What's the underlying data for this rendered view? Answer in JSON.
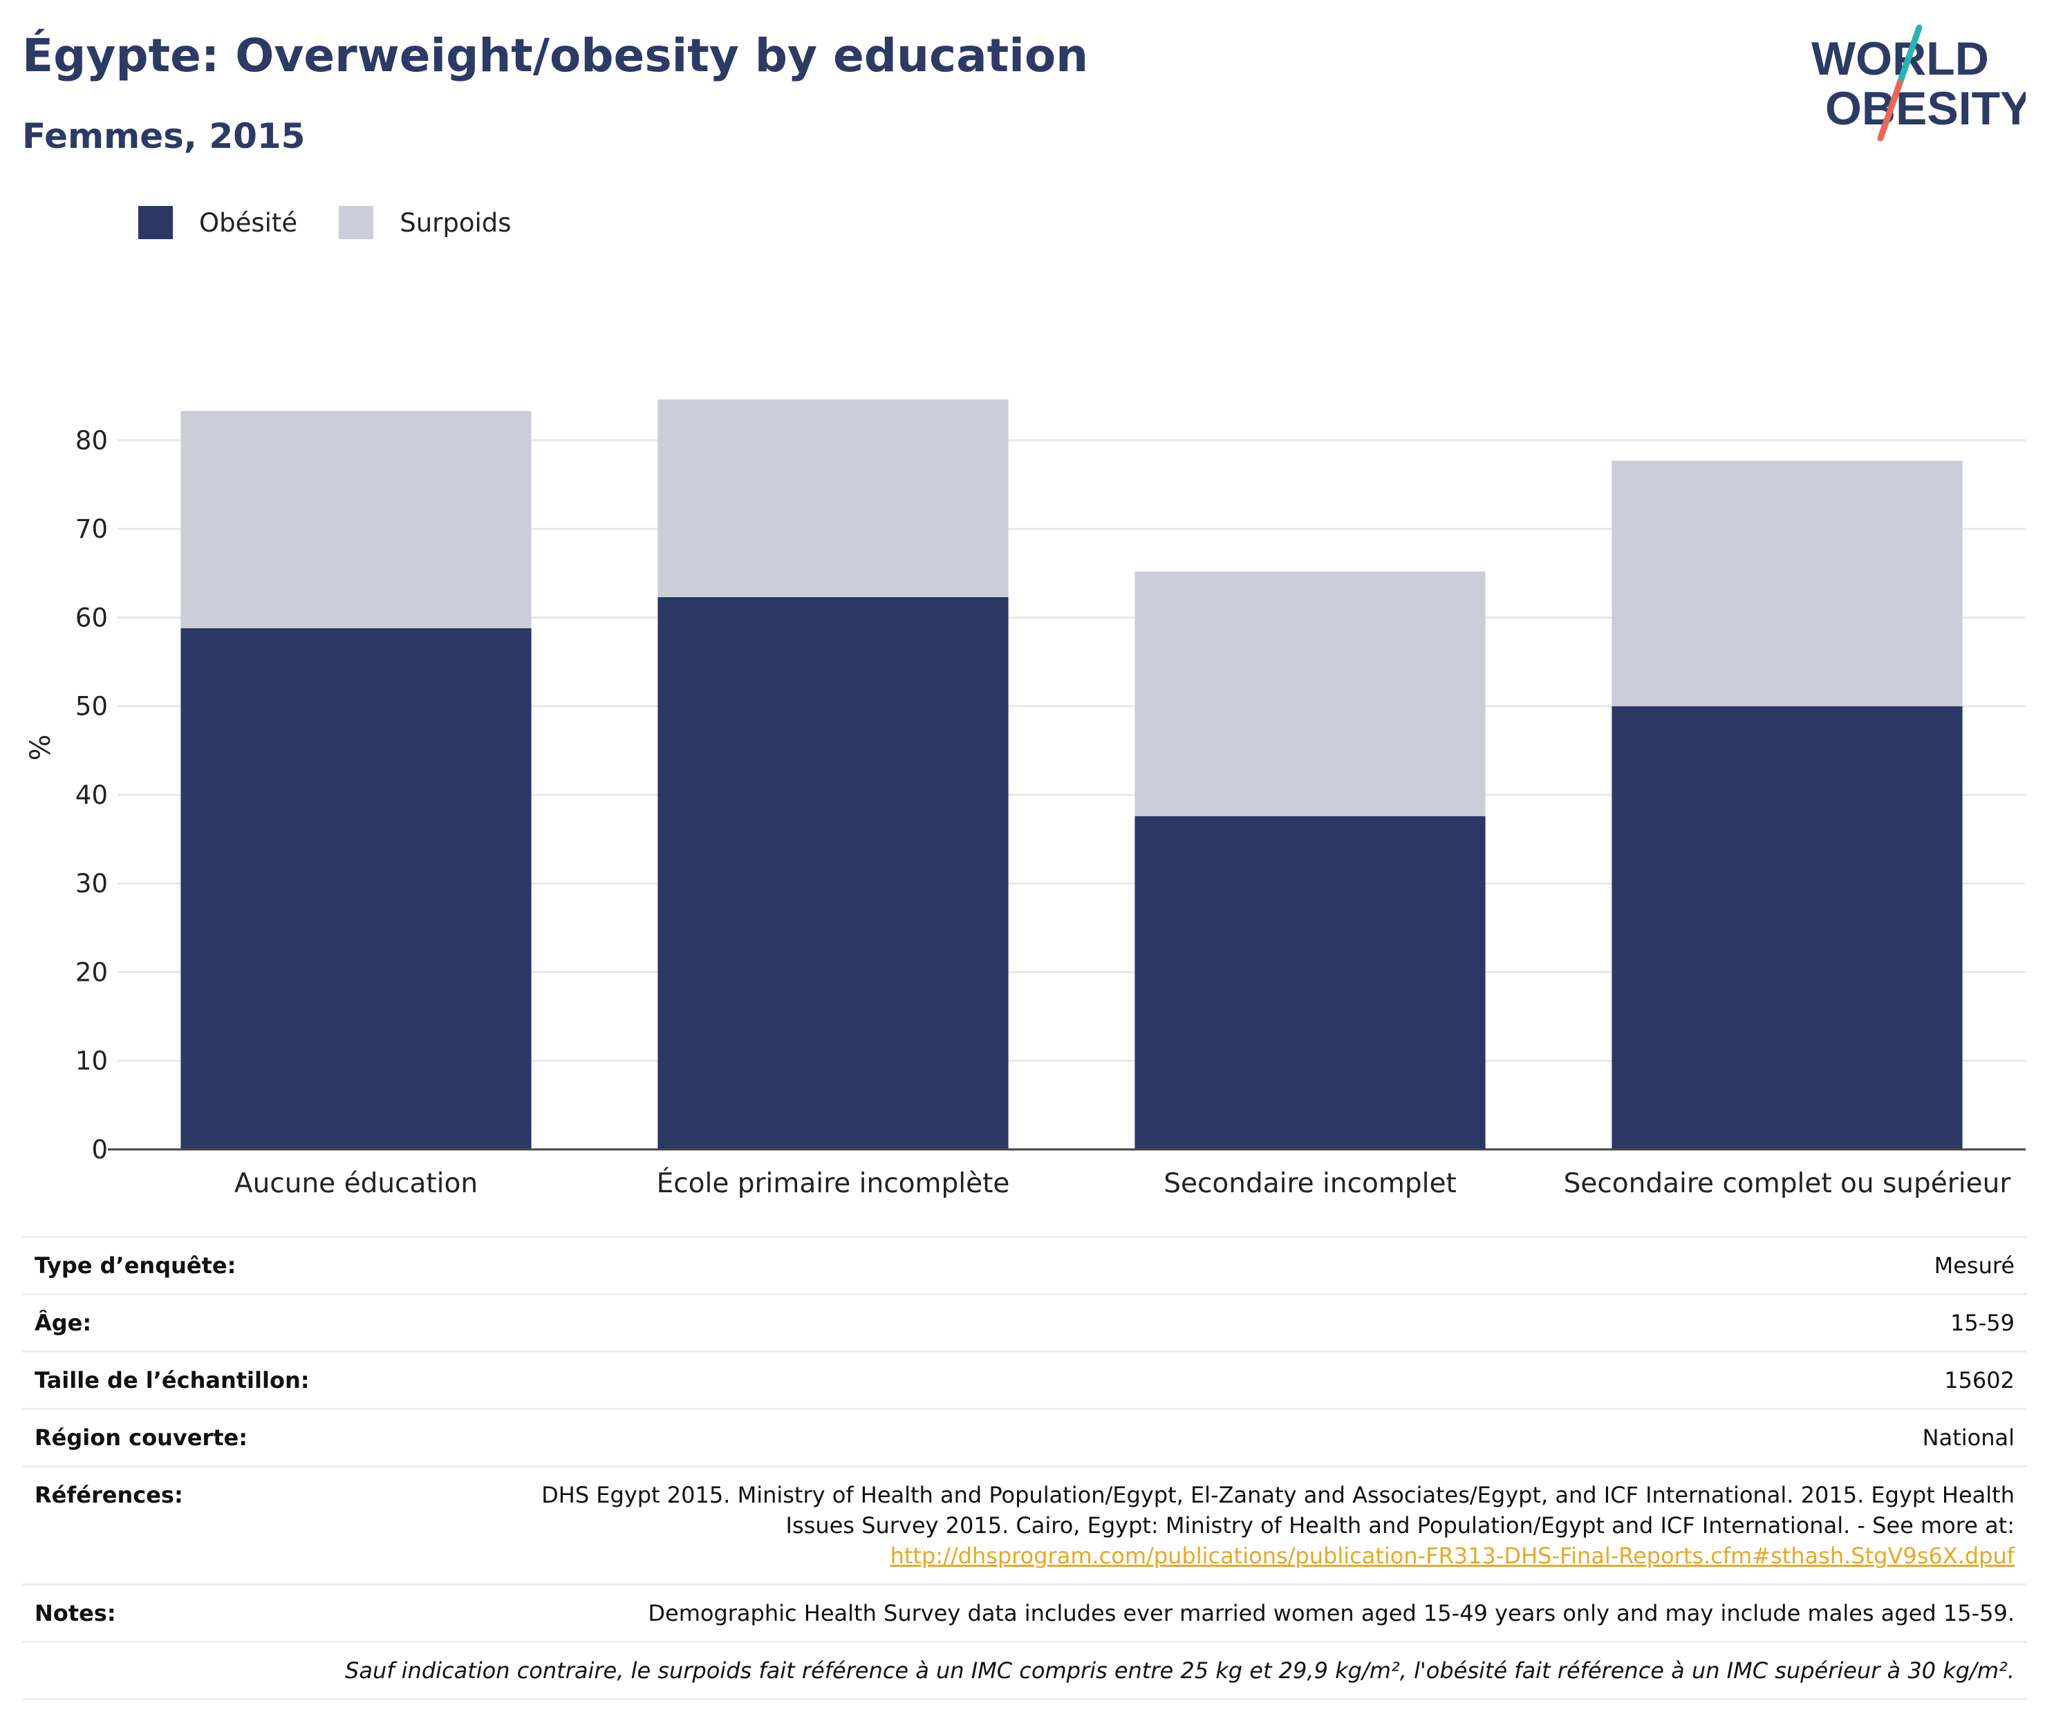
{
  "header": {
    "title": "Égypte: Overweight/obesity by education",
    "subtitle": "Femmes, 2015",
    "logo_line1": "WORLD",
    "logo_line2": "OBESITY"
  },
  "legend": {
    "obesity": "Obésité",
    "overweight": "Surpoids"
  },
  "colors": {
    "obesity": "#2b3764",
    "overweight": "#cbcdd8",
    "title": "#2c3a64",
    "link": "#e8a825",
    "logo_teal": "#2bb3b1",
    "logo_red": "#e8675a"
  },
  "chart_data": {
    "type": "bar",
    "stacked": true,
    "categories": [
      "Aucune éducation",
      "École primaire incomplète",
      "Secondaire incomplet",
      "Secondaire complet ou supérieur"
    ],
    "series": [
      {
        "name": "Obésité",
        "values": [
          58.8,
          62.3,
          37.6,
          50.0
        ]
      },
      {
        "name": "Surpoids",
        "values": [
          24.5,
          22.3,
          27.6,
          27.7
        ]
      }
    ],
    "ylabel": "%",
    "yticks": [
      0,
      10,
      20,
      30,
      40,
      50,
      60,
      70,
      80
    ],
    "ylim": [
      0,
      86
    ],
    "grid": true,
    "legend_position": "top-left"
  },
  "info_table": [
    {
      "label": "Type d’enquête:",
      "value": "Mesuré"
    },
    {
      "label": "Âge:",
      "value": "15-59"
    },
    {
      "label": "Taille de l’échantillon:",
      "value": "15602"
    },
    {
      "label": "Région couverte:",
      "value": "National"
    }
  ],
  "references": {
    "label": "Références:",
    "line1": "DHS Egypt 2015. Ministry of Health and Population/Egypt, El-Zanaty and Associates/Egypt, and ICF International. 2015. Egypt Health",
    "line2": "Issues Survey 2015. Cairo, Egypt: Ministry of Health and Population/Egypt and ICF International. - See more at:",
    "link": "http://dhsprogram.com/publications/publication-FR313-DHS-Final-Reports.cfm#sthash.StgV9s6X.dpuf"
  },
  "notes": {
    "label": "Notes:",
    "value": "Demographic Health Survey data includes ever married women aged 15-49 years only and may include males aged 15-59."
  },
  "footnote": "Sauf indication contraire, le surpoids fait référence à un IMC compris entre 25 kg et 29,9 kg/m², l'obésité fait référence à un IMC supérieur à 30 kg/m²."
}
